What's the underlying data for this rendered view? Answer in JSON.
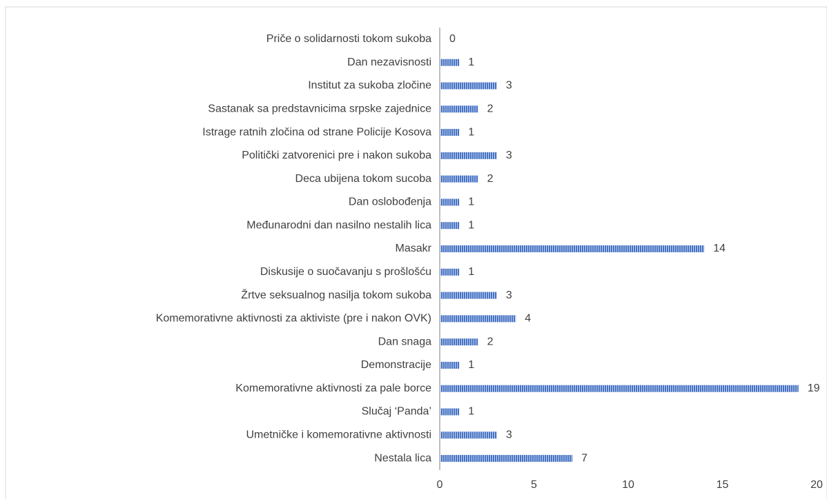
{
  "chart_data": {
    "type": "bar",
    "orientation": "horizontal",
    "categories": [
      "Priče o solidarnosti tokom sukoba",
      "Dan nezavisnosti",
      "Institut za sukoba zločine",
      "Sastanak sa predstavnicima srpske zajednice",
      "Istrage ratnih zločina od strane Policije Kosova",
      "Politički zatvorenici pre i nakon sukoba",
      "Deca ubijena tokom sucoba",
      "Dan oslobođenja",
      "Međunarodni dan nasilno nestalih lica",
      "Masakr",
      "Diskusije o suočavanju s prošlošću",
      "Žrtve seksualnog nasilja tokom sukoba",
      "Komemorativne aktivnosti za aktiviste (pre i nakon OVK)",
      "Dan snaga",
      "Demonstracije",
      "Komemorativne aktivnosti za pale borce",
      "Slučaj ‘Panda’",
      "Umetničke i komemorativne aktivnosti",
      "Nestala lica"
    ],
    "values": [
      0,
      1,
      3,
      2,
      1,
      3,
      2,
      1,
      1,
      14,
      1,
      3,
      4,
      2,
      1,
      19,
      1,
      3,
      7
    ],
    "color": "#4472c4",
    "xlim": [
      0,
      20
    ],
    "xticks": [
      0,
      5,
      10,
      15,
      20
    ],
    "grid": false
  }
}
